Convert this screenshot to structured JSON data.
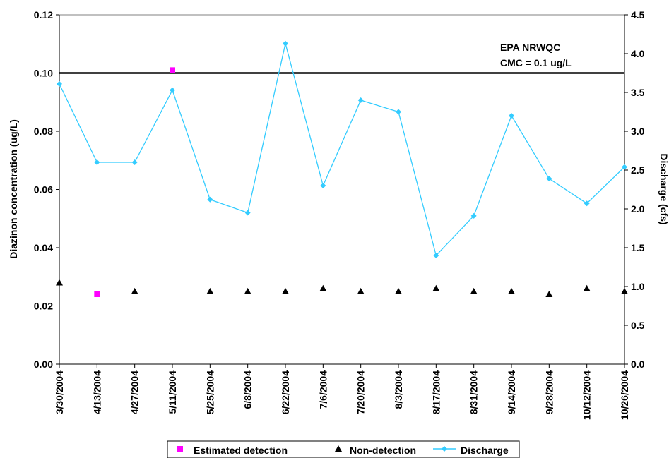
{
  "chart_data": {
    "type": "line",
    "categories": [
      "3/30/2004",
      "4/13/2004",
      "4/27/2004",
      "5/11/2004",
      "5/25/2004",
      "6/8/2004",
      "6/22/2004",
      "7/6/2004",
      "7/20/2004",
      "8/3/2004",
      "8/17/2004",
      "8/31/2004",
      "9/14/2004",
      "9/28/2004",
      "10/12/2004",
      "10/26/2004"
    ],
    "ylabel": "Diazinon concentration (ug/L)",
    "y2label": "Discharge (cfs)",
    "ylim": [
      0,
      0.12
    ],
    "y2lim": [
      0,
      4.5
    ],
    "yticks": [
      "0.00",
      "0.02",
      "0.04",
      "0.06",
      "0.08",
      "0.10",
      "0.12"
    ],
    "y2ticks": [
      "0.0",
      "0.5",
      "1.0",
      "1.5",
      "2.0",
      "2.5",
      "3.0",
      "3.5",
      "4.0",
      "4.5"
    ],
    "grid": false,
    "legend_position": "bottom",
    "series": [
      {
        "name": "Estimated detection",
        "marker": "square",
        "color": "#FF00FF",
        "axis": "left",
        "points": [
          {
            "x": "4/13/2004",
            "y": 0.024
          },
          {
            "x": "5/11/2004",
            "y": 0.101
          }
        ]
      },
      {
        "name": "Non-detection",
        "marker": "triangle",
        "color": "#000000",
        "axis": "left",
        "points": [
          {
            "x": "3/30/2004",
            "y": 0.028
          },
          {
            "x": "4/27/2004",
            "y": 0.025
          },
          {
            "x": "5/25/2004",
            "y": 0.025
          },
          {
            "x": "6/8/2004",
            "y": 0.025
          },
          {
            "x": "6/22/2004",
            "y": 0.025
          },
          {
            "x": "7/6/2004",
            "y": 0.026
          },
          {
            "x": "7/20/2004",
            "y": 0.025
          },
          {
            "x": "8/3/2004",
            "y": 0.025
          },
          {
            "x": "8/17/2004",
            "y": 0.026
          },
          {
            "x": "8/31/2004",
            "y": 0.025
          },
          {
            "x": "9/14/2004",
            "y": 0.025
          },
          {
            "x": "9/28/2004",
            "y": 0.024
          },
          {
            "x": "10/12/2004",
            "y": 0.026
          },
          {
            "x": "10/26/2004",
            "y": 0.025
          }
        ]
      },
      {
        "name": "Discharge",
        "marker": "diamond",
        "color": "#33CCFF",
        "axis": "right",
        "values": [
          3.61,
          2.6,
          2.6,
          3.53,
          2.12,
          1.95,
          4.13,
          2.3,
          3.4,
          3.25,
          1.4,
          1.91,
          3.2,
          2.39,
          2.07,
          2.54
        ]
      }
    ],
    "reference_line": {
      "value": 0.1,
      "axis": "left",
      "color": "#000000",
      "label_line1": "EPA NRWQC",
      "label_line2": "CMC = 0.1 ug/L"
    }
  }
}
